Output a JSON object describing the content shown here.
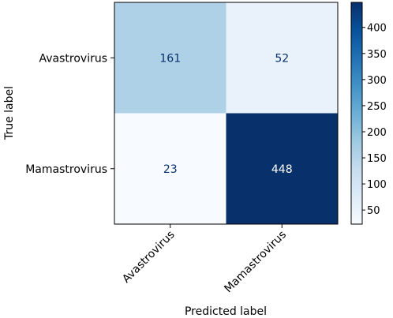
{
  "chart_data": {
    "type": "heatmap",
    "title": "",
    "xlabel": "Predicted label",
    "ylabel": "True label",
    "x_categories": [
      "Avastrovirus",
      "Mamastrovirus"
    ],
    "y_categories": [
      "Avastrovirus",
      "Mamastrovirus"
    ],
    "values": [
      [
        161,
        52
      ],
      [
        23,
        448
      ]
    ],
    "colormap": "Blues",
    "color_range": [
      23,
      448
    ],
    "colorbar_ticks": [
      50,
      100,
      150,
      200,
      250,
      300,
      350,
      400
    ],
    "colors": {
      "low": "#f7fbff",
      "high": "#08306b",
      "text_dark": "#08306b",
      "text_light": "#ffffff"
    }
  }
}
